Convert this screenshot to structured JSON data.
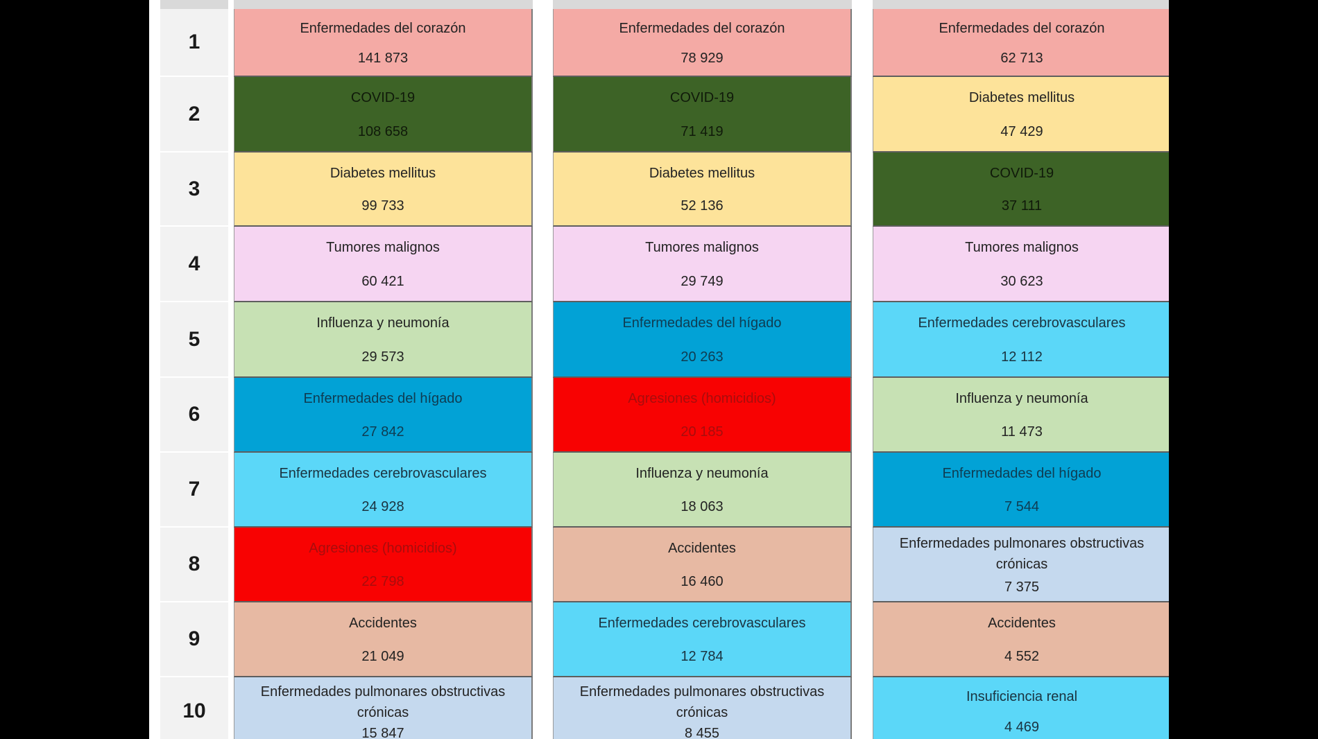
{
  "categories": {
    "corazon": {
      "label": "Enfermedades del corazón",
      "color": "#f4aaa5",
      "text": "#222222"
    },
    "covid": {
      "label": "COVID-19",
      "color": "#3d6326",
      "text": "#101a0a"
    },
    "diabetes": {
      "label": "Diabetes mellitus",
      "color": "#fde39a",
      "text": "#222222"
    },
    "tumores": {
      "label": "Tumores malignos",
      "color": "#f6d5f2",
      "text": "#222222"
    },
    "influenza": {
      "label": "Influenza y neumonía",
      "color": "#c7e1b4",
      "text": "#222222"
    },
    "higado": {
      "label": "Enfermedades del hígado",
      "color": "#02a2d6",
      "text": "#0f3c52"
    },
    "cerebro": {
      "label": "Enfermedades cerebrovasculares",
      "color": "#5bd7f8",
      "text": "#1a3340"
    },
    "agresiones": {
      "label": "Agresiones (homicidios)",
      "color": "#f80202",
      "text": "#a80d0d"
    },
    "accidentes": {
      "label": "Accidentes",
      "color": "#e7b9a3",
      "text": "#222222"
    },
    "epoc": {
      "label": "Enfermedades pulmonares obstructivas crónicas",
      "color": "#c5d9ee",
      "text": "#222222"
    },
    "renal": {
      "label": "Insuficiencia renal",
      "color": "#5bd7f8",
      "text": "#1a3340"
    }
  },
  "ranks": [
    "1",
    "2",
    "3",
    "4",
    "5",
    "6",
    "7",
    "8",
    "9",
    "10"
  ],
  "columns": [
    {
      "rows": [
        {
          "cat": "corazon",
          "value": "141 873"
        },
        {
          "cat": "covid",
          "value": "108 658"
        },
        {
          "cat": "diabetes",
          "value": "99 733"
        },
        {
          "cat": "tumores",
          "value": "60 421"
        },
        {
          "cat": "influenza",
          "value": "29 573"
        },
        {
          "cat": "higado",
          "value": "27 842"
        },
        {
          "cat": "cerebro",
          "value": "24 928"
        },
        {
          "cat": "agresiones",
          "value": "22 798"
        },
        {
          "cat": "accidentes",
          "value": "21 049"
        },
        {
          "cat": "epoc",
          "value": "15 847"
        }
      ]
    },
    {
      "rows": [
        {
          "cat": "corazon",
          "value": "78 929"
        },
        {
          "cat": "covid",
          "value": "71 419"
        },
        {
          "cat": "diabetes",
          "value": "52 136"
        },
        {
          "cat": "tumores",
          "value": "29 749"
        },
        {
          "cat": "higado",
          "value": "20 263"
        },
        {
          "cat": "agresiones",
          "value": "20 185"
        },
        {
          "cat": "influenza",
          "value": "18 063"
        },
        {
          "cat": "accidentes",
          "value": "16 460"
        },
        {
          "cat": "cerebro",
          "value": "12 784"
        },
        {
          "cat": "epoc",
          "value": "8 455"
        }
      ]
    },
    {
      "rows": [
        {
          "cat": "corazon",
          "value": "62 713"
        },
        {
          "cat": "diabetes",
          "value": "47 429"
        },
        {
          "cat": "covid",
          "value": "37 111"
        },
        {
          "cat": "tumores",
          "value": "30 623"
        },
        {
          "cat": "cerebro",
          "value": "12 112"
        },
        {
          "cat": "influenza",
          "value": "11 473"
        },
        {
          "cat": "higado",
          "value": "7 544"
        },
        {
          "cat": "epoc",
          "value": "7 375"
        },
        {
          "cat": "accidentes",
          "value": "4 552"
        },
        {
          "cat": "renal",
          "value": "4 469"
        }
      ]
    }
  ]
}
